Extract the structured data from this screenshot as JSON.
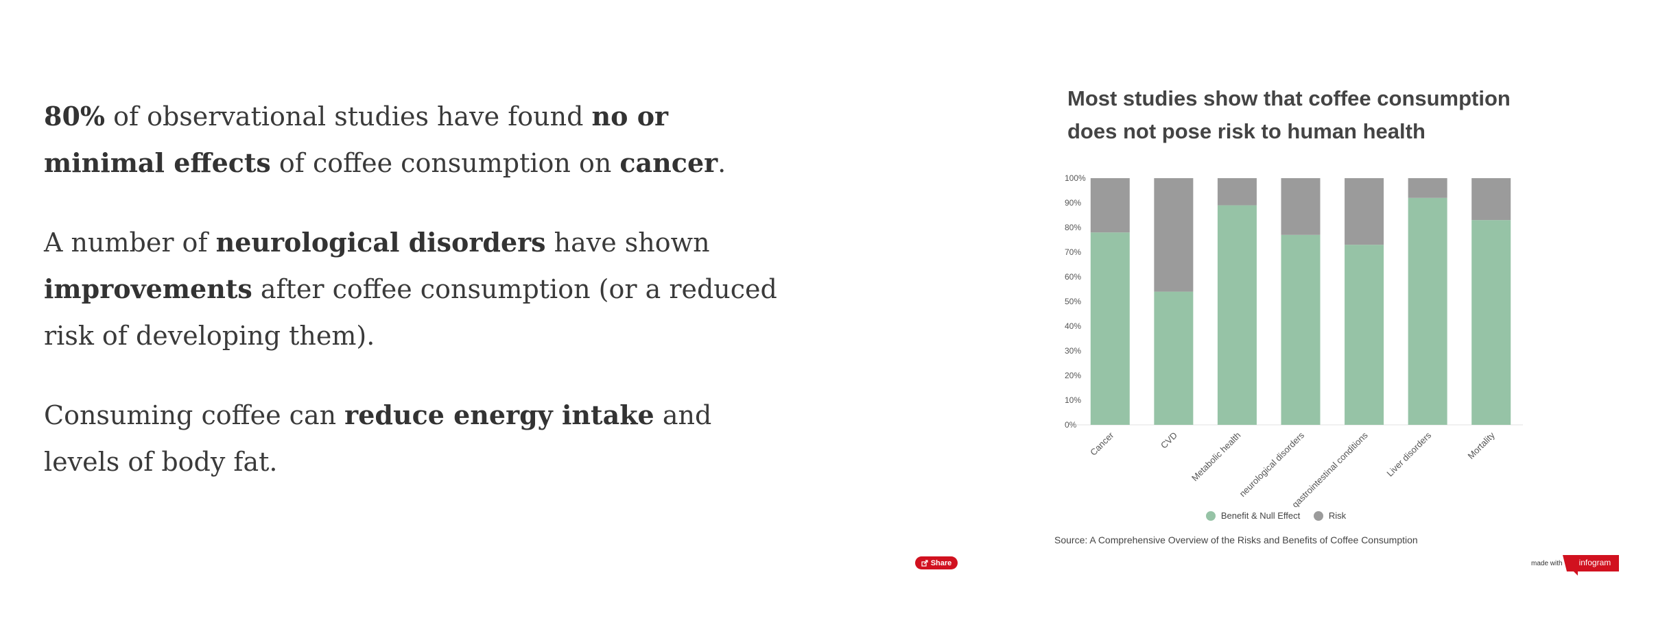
{
  "paragraphs": [
    {
      "parts": [
        {
          "t": "80%",
          "b": true
        },
        {
          "t": " of observational studies have found "
        },
        {
          "t": "no or minimal effects",
          "b": true
        },
        {
          "t": " of coffee consumption on "
        },
        {
          "t": "cancer",
          "b": true
        },
        {
          "t": "."
        }
      ]
    },
    {
      "parts": [
        {
          "t": "A number of "
        },
        {
          "t": "neurological disorders",
          "b": true
        },
        {
          "t": " have shown "
        },
        {
          "t": "improvements",
          "b": true
        },
        {
          "t": " after coffee consumption (or a reduced risk of developing them)."
        }
      ]
    },
    {
      "parts": [
        {
          "t": "Consuming coffee can "
        },
        {
          "t": "reduce energy intake",
          "b": true
        },
        {
          "t": " and levels of body fat."
        }
      ]
    }
  ],
  "chart_data": {
    "type": "bar",
    "stacked": true,
    "title": "Most studies show that coffee consumption does not pose risk to human health",
    "categories": [
      "Cancer",
      "CVD",
      "Metabolic health",
      "neurological disorders",
      "gastrointestinal conditions",
      "Liver disorders",
      "Mortality"
    ],
    "series": [
      {
        "name": "Benefit & Null Effect",
        "values": [
          78,
          54,
          89,
          77,
          73,
          92,
          83
        ],
        "color": "#96c3a6"
      },
      {
        "name": "Risk",
        "values": [
          22,
          46,
          11,
          23,
          27,
          8,
          17
        ],
        "color": "#9b9b9b"
      }
    ],
    "yticks": [
      "0%",
      "10%",
      "20%",
      "30%",
      "40%",
      "50%",
      "60%",
      "70%",
      "80%",
      "90%",
      "100%"
    ],
    "ylim": [
      0,
      100
    ],
    "legend_position": "bottom",
    "grid": false
  },
  "source": "Source: A Comprehensive Overview of the Risks and Benefits of Coffee Consumption",
  "share": {
    "label": "Share",
    "icon": "share-icon"
  },
  "footer": {
    "made_with": "made with",
    "brand": "infogram"
  },
  "colors": {
    "accent": "#d1111f",
    "benefit": "#96c3a6",
    "risk": "#9b9b9b"
  }
}
